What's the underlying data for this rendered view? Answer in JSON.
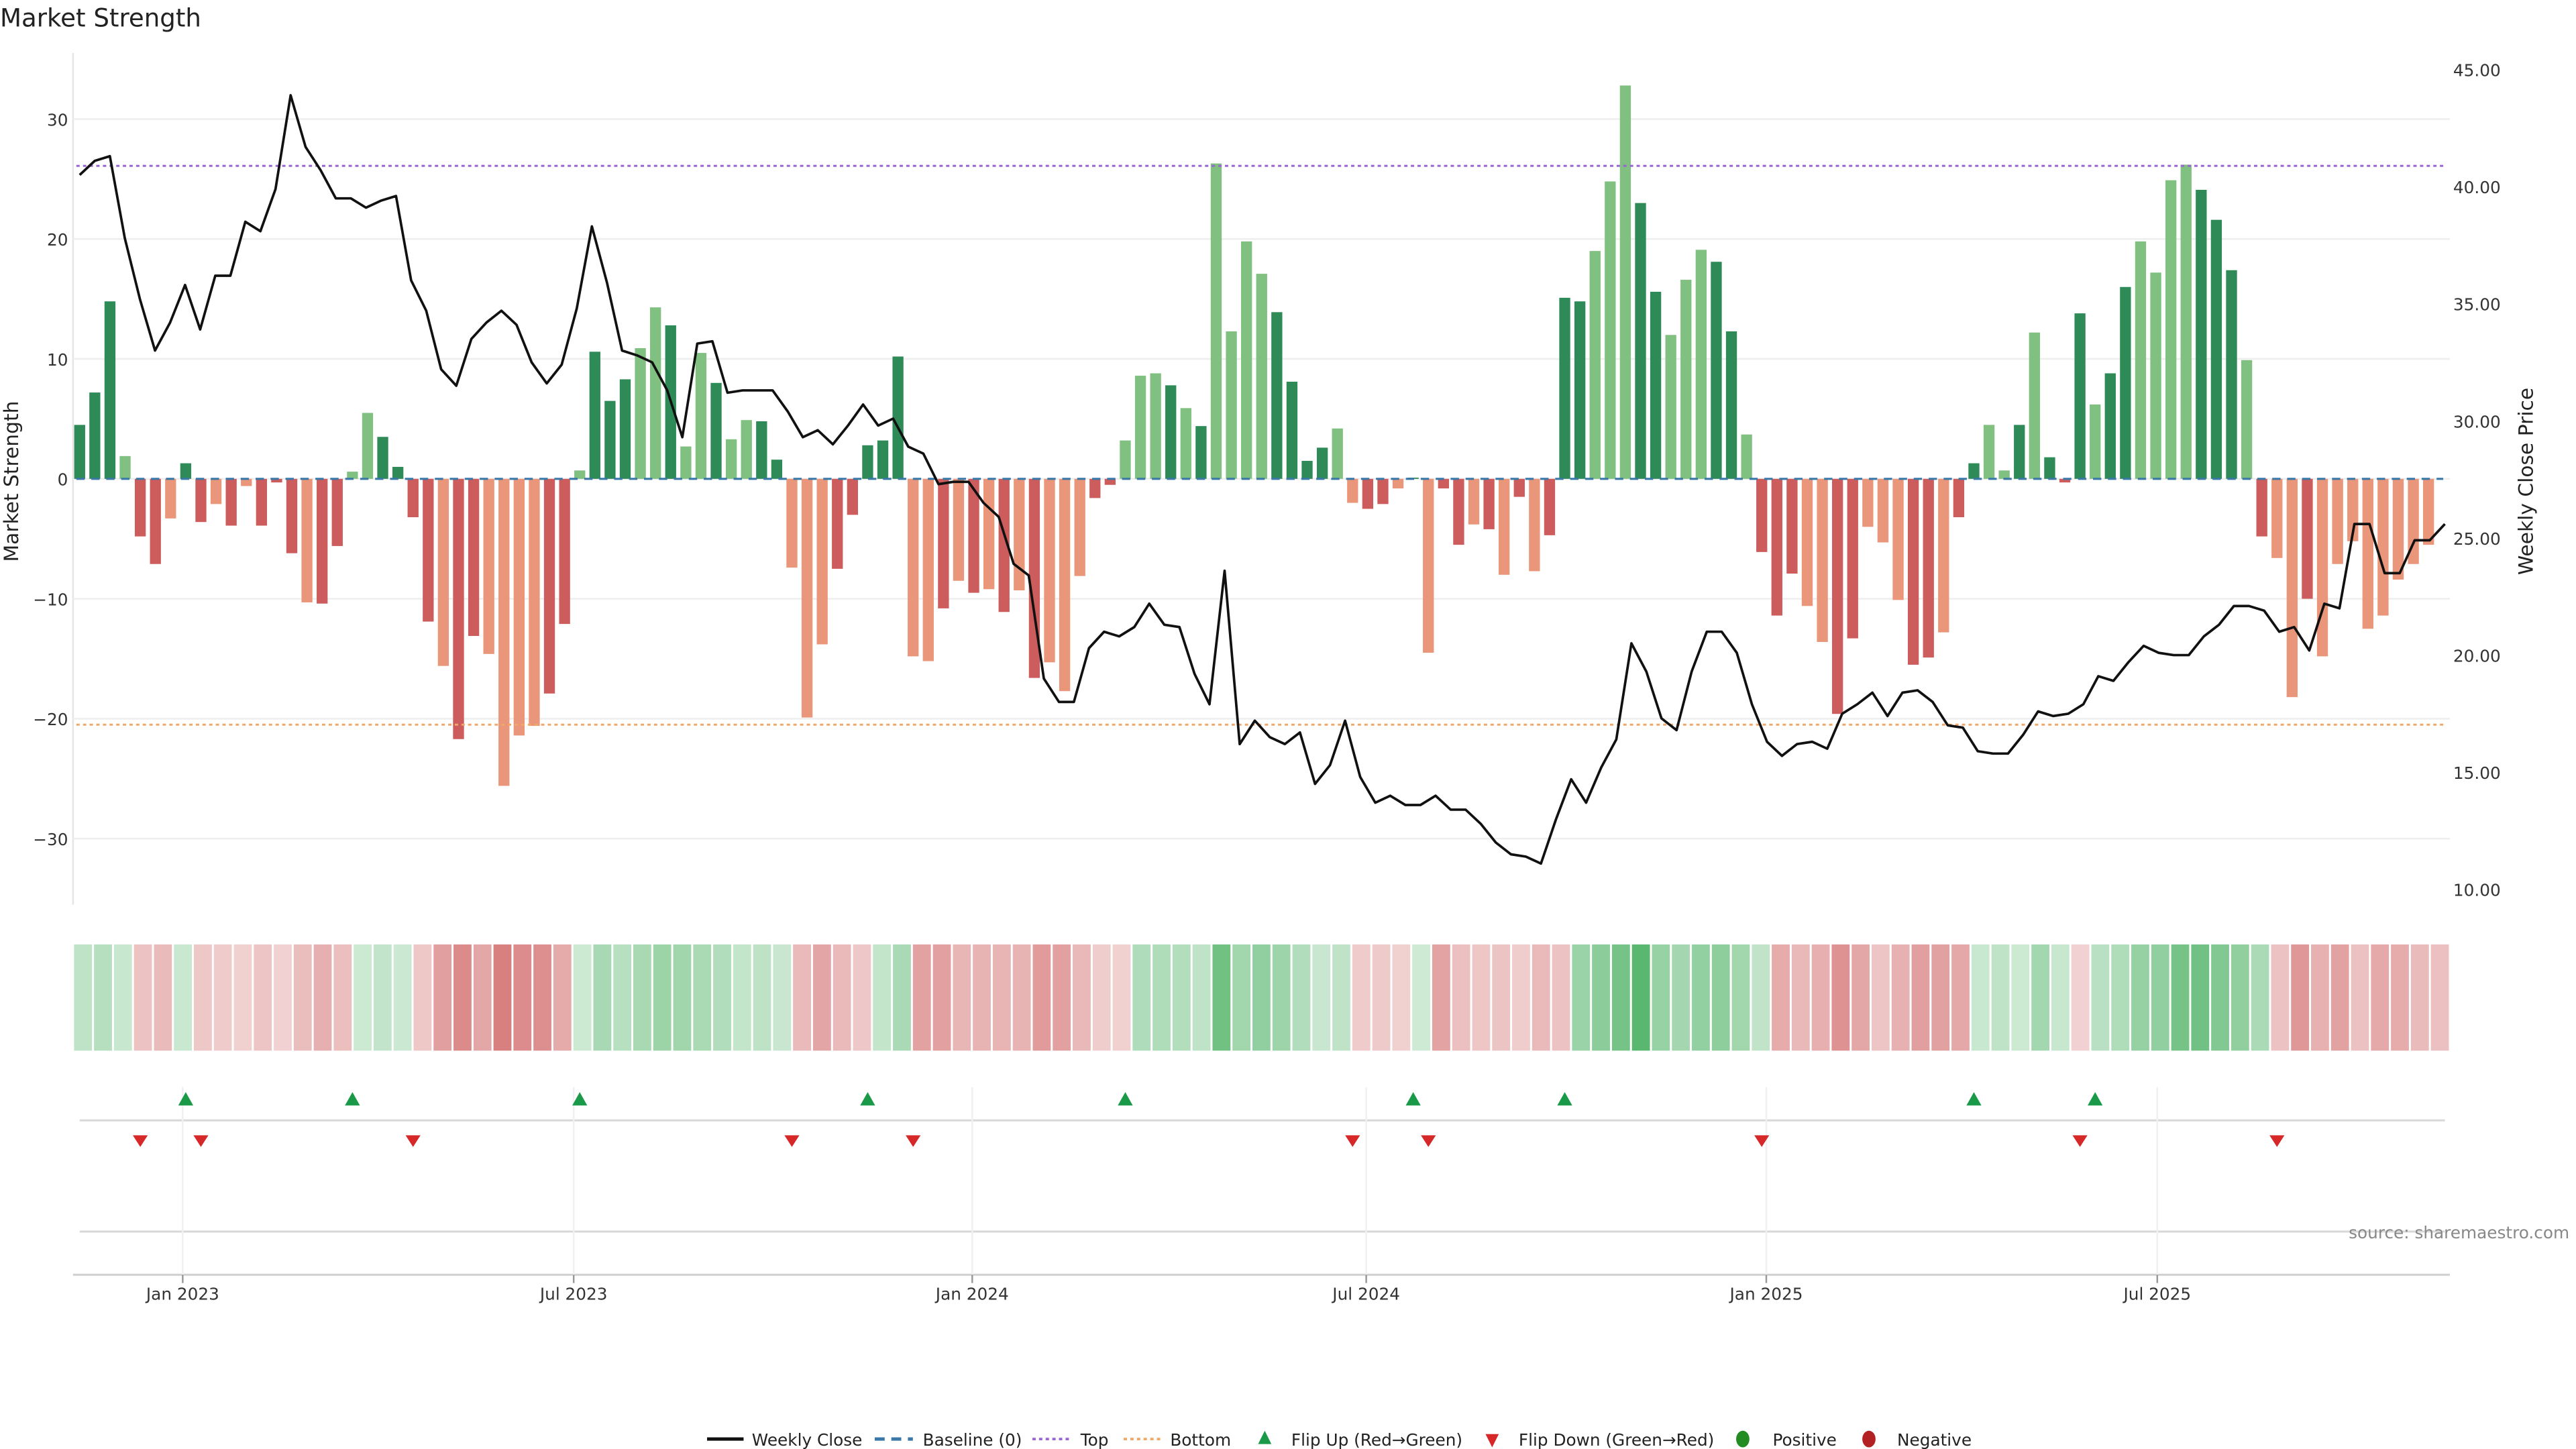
{
  "chart_data": {
    "type": "bar",
    "title": "Market Strength",
    "ylabel": "Market Strength",
    "y2label": "Weekly Close Price",
    "ylim": [
      -35.5,
      35.5
    ],
    "y2lim": [
      9.35,
      45.7
    ],
    "yticks": [
      30,
      20,
      10,
      0,
      -10,
      -20,
      -30
    ],
    "y2ticks": [
      "10.00",
      "15.00",
      "20.00",
      "25.00",
      "30.00",
      "35.00",
      "40.00",
      "45.00"
    ],
    "xticks": [
      {
        "label": "Jan 2023",
        "week": 6.8
      },
      {
        "label": "Jul 2023",
        "week": 32.6
      },
      {
        "label": "Jan 2024",
        "week": 58.9
      },
      {
        "label": "Jul 2024",
        "week": 84.9
      },
      {
        "label": "Jan 2025",
        "week": 111.3
      },
      {
        "label": "Jul 2025",
        "week": 137.1
      }
    ],
    "baseline": 0,
    "top": 26.1,
    "bottom": -20.5,
    "strength": [
      4.5,
      7.2,
      14.8,
      1.9,
      -4.8,
      -7.1,
      -3.3,
      1.3,
      -3.6,
      -2.1,
      -3.9,
      -0.6,
      -3.9,
      -0.3,
      -6.2,
      -10.3,
      -10.4,
      -5.6,
      0.6,
      5.5,
      3.5,
      1.0,
      -3.2,
      -11.9,
      -15.6,
      -21.7,
      -13.1,
      -14.6,
      -25.6,
      -21.4,
      -20.6,
      -17.9,
      -12.1,
      0.7,
      10.6,
      6.5,
      8.3,
      10.9,
      14.3,
      12.8,
      2.7,
      10.5,
      8.0,
      3.3,
      4.9,
      4.8,
      1.6,
      -7.4,
      -19.9,
      -13.8,
      -7.5,
      -3.0,
      2.8,
      3.2,
      10.2,
      -14.8,
      -15.2,
      -10.8,
      -8.5,
      -9.5,
      -9.2,
      -11.1,
      -9.3,
      -16.6,
      -15.3,
      -17.7,
      -8.1,
      -1.6,
      -0.5,
      3.2,
      8.6,
      8.8,
      7.8,
      5.9,
      4.4,
      26.3,
      12.3,
      19.8,
      17.1,
      13.9,
      8.1,
      1.5,
      2.6,
      4.2,
      -2.0,
      -2.5,
      -2.1,
      -0.8,
      0.1,
      -14.5,
      -0.8,
      -5.5,
      -3.8,
      -4.2,
      -8.0,
      -1.5,
      -7.7,
      -4.7,
      15.1,
      14.8,
      19.0,
      24.8,
      32.8,
      23.0,
      15.6,
      12.0,
      16.6,
      19.1,
      18.1,
      12.3,
      3.7,
      -6.1,
      -11.4,
      -7.9,
      -10.6,
      -13.6,
      -19.6,
      -13.3,
      -4.0,
      -5.3,
      -10.1,
      -15.5,
      -14.9,
      -12.8,
      -3.2,
      1.3,
      4.5,
      0.7,
      4.5,
      12.2,
      1.8,
      -0.3,
      13.8,
      6.2,
      8.8,
      16.0,
      19.8,
      17.2,
      24.9,
      26.2,
      24.1,
      21.6,
      17.4,
      9.9,
      -4.8,
      -6.6,
      -18.2,
      -10.0,
      -14.8,
      -7.1,
      -5.2,
      -12.5,
      -11.4,
      -8.4,
      -7.1,
      -5.5
    ],
    "shades": "dddlddlddldldddlddllddddlddllllddldddlldlldllddllldddddlldldldldlllddllldldllllddddlldd ldlddldldldddlllddlllddldddllddlllddldd lldldddlddlllldddldlldllll",
    "weekly_close": [
      40.5,
      41.1,
      41.3,
      37.8,
      35.2,
      33.0,
      34.2,
      35.8,
      33.9,
      36.2,
      36.2,
      38.5,
      38.1,
      39.9,
      43.9,
      41.7,
      40.7,
      39.5,
      39.5,
      39.1,
      39.4,
      39.6,
      36.0,
      34.7,
      32.2,
      31.5,
      33.5,
      34.2,
      34.7,
      34.1,
      32.5,
      31.6,
      32.4,
      34.8,
      38.3,
      35.9,
      33.0,
      32.8,
      32.5,
      31.3,
      29.3,
      33.3,
      33.4,
      31.2,
      31.3,
      31.3,
      31.3,
      30.4,
      29.3,
      29.6,
      29.0,
      29.8,
      30.7,
      29.8,
      30.1,
      28.9,
      28.6,
      27.3,
      27.4,
      27.4,
      26.5,
      25.9,
      23.9,
      23.4,
      19.0,
      18.0,
      18.0,
      20.3,
      21.0,
      20.8,
      21.2,
      22.2,
      21.3,
      21.2,
      19.2,
      17.9,
      23.6,
      16.2,
      17.2,
      16.5,
      16.2,
      16.7,
      14.5,
      15.3,
      17.2,
      14.8,
      13.7,
      14.0,
      13.6,
      13.6,
      14.0,
      13.4,
      13.4,
      12.8,
      12.0,
      11.5,
      11.4,
      11.1,
      13.0,
      14.7,
      13.7,
      15.2,
      16.4,
      20.5,
      19.3,
      17.3,
      16.8,
      19.3,
      21.0,
      21.0,
      20.1,
      17.9,
      16.3,
      15.7,
      16.2,
      16.3,
      16.0,
      17.5,
      17.9,
      18.4,
      17.4,
      18.4,
      18.5,
      18.0,
      17.0,
      16.9,
      15.9,
      15.8,
      15.8,
      16.6,
      17.6,
      17.4,
      17.5,
      17.9,
      19.1,
      18.9,
      19.7,
      20.4,
      20.1,
      20.0,
      20.0,
      20.8,
      21.3,
      22.1,
      22.1,
      21.9,
      21.0,
      21.2,
      20.2,
      22.2,
      22.0,
      25.6,
      25.6,
      23.5,
      23.5,
      24.9,
      24.9,
      25.6
    ],
    "flip_up_weeks": [
      7,
      18,
      33,
      52,
      69,
      88,
      98,
      125,
      133
    ],
    "flip_down_weeks": [
      4,
      8,
      22,
      47,
      55,
      84,
      89,
      111,
      132,
      145
    ],
    "legend": {
      "weekly_close": "Weekly Close",
      "baseline": "Baseline (0)",
      "top": "Top",
      "bottom": "Bottom",
      "flip_up": "Flip Up (Red→Green)",
      "flip_down": "Flip Down (Green→Red)",
      "positive": "Positive",
      "negative": "Negative"
    },
    "source": "source: sharemaestro.com",
    "colors": {
      "pos_strong": "#2e8b57",
      "pos_weak": "#80c080",
      "neg_strong": "#cd5c5c",
      "neg_weak": "#e9967a",
      "line": "#111111",
      "baseline": "#3a78a8",
      "top": "#9a66d6",
      "bottom": "#f0a868",
      "flip_up": "#1a9a48",
      "flip_down": "#d62828",
      "positive": "#228b22",
      "negative": "#b22222"
    }
  }
}
